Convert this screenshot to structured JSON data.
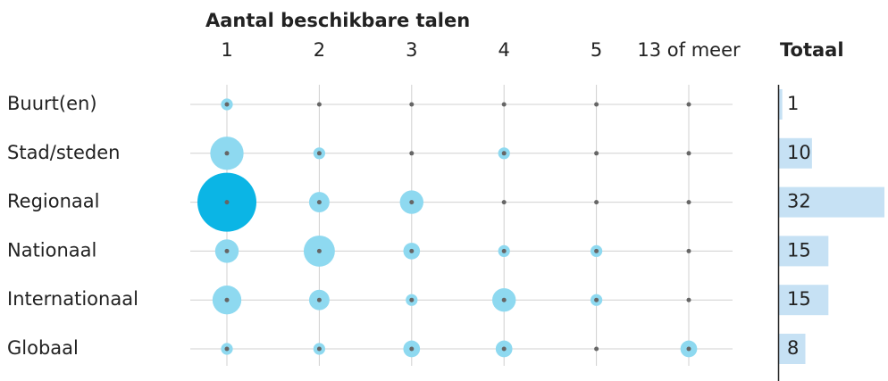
{
  "chart_data": {
    "type": "bubble-matrix",
    "title": "Aantal beschikbare talen",
    "categories": [
      "1",
      "2",
      "3",
      "4",
      "5",
      "13 of meer"
    ],
    "series": [
      {
        "name": "Buurt(en)",
        "values": [
          1,
          0,
          0,
          0,
          0,
          0
        ]
      },
      {
        "name": "Stad/steden",
        "values": [
          8,
          1,
          0,
          1,
          0,
          0
        ]
      },
      {
        "name": "Regionaal",
        "values": [
          25,
          3,
          4,
          0,
          0,
          0
        ]
      },
      {
        "name": "Nationaal",
        "values": [
          4,
          7,
          2,
          1,
          1,
          0
        ]
      },
      {
        "name": "Internationaal",
        "values": [
          6,
          3,
          1,
          4,
          1,
          0
        ]
      },
      {
        "name": "Globaal",
        "values": [
          1,
          1,
          2,
          2,
          0,
          2
        ]
      }
    ],
    "totals_label": "Totaal",
    "totals": [
      1,
      10,
      32,
      15,
      15,
      8
    ],
    "bubble_color": "#8ed9f0",
    "largest_bubble_color": "#0bb5e5",
    "totals_color": "#c6e1f4"
  }
}
